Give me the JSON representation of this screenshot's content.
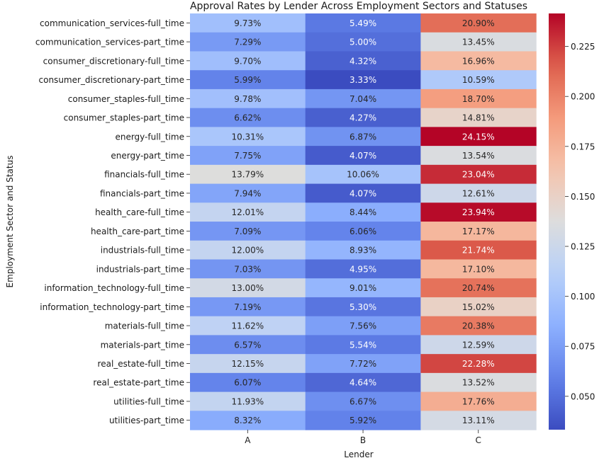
{
  "chart_data": {
    "type": "heatmap",
    "title": "Approval Rates by Lender Across Employment Sectors and Statuses",
    "xlabel": "Lender",
    "ylabel": "Employment Sector and Status",
    "colormap": "coolwarm",
    "vmin": 0.0333,
    "vmax": 0.2415,
    "colorbar_ticks": [
      "0.050",
      "0.075",
      "0.100",
      "0.125",
      "0.150",
      "0.175",
      "0.200",
      "0.225"
    ],
    "columns": [
      "A",
      "B",
      "C"
    ],
    "rows": [
      {
        "label": "communication_services-full_time",
        "values": [
          0.0973,
          0.0549,
          0.209
        ],
        "text": [
          "9.73%",
          "5.49%",
          "20.90%"
        ]
      },
      {
        "label": "communication_services-part_time",
        "values": [
          0.0729,
          0.05,
          0.1345
        ],
        "text": [
          "7.29%",
          "5.00%",
          "13.45%"
        ]
      },
      {
        "label": "consumer_discretionary-full_time",
        "values": [
          0.097,
          0.0432,
          0.1696
        ],
        "text": [
          "9.70%",
          "4.32%",
          "16.96%"
        ]
      },
      {
        "label": "consumer_discretionary-part_time",
        "values": [
          0.0599,
          0.0333,
          0.1059
        ],
        "text": [
          "5.99%",
          "3.33%",
          "10.59%"
        ]
      },
      {
        "label": "consumer_staples-full_time",
        "values": [
          0.0978,
          0.0704,
          0.187
        ],
        "text": [
          "9.78%",
          "7.04%",
          "18.70%"
        ]
      },
      {
        "label": "consumer_staples-part_time",
        "values": [
          0.0662,
          0.0427,
          0.1481
        ],
        "text": [
          "6.62%",
          "4.27%",
          "14.81%"
        ]
      },
      {
        "label": "energy-full_time",
        "values": [
          0.1031,
          0.0687,
          0.2415
        ],
        "text": [
          "10.31%",
          "6.87%",
          "24.15%"
        ]
      },
      {
        "label": "energy-part_time",
        "values": [
          0.0775,
          0.0407,
          0.1354
        ],
        "text": [
          "7.75%",
          "4.07%",
          "13.54%"
        ]
      },
      {
        "label": "financials-full_time",
        "values": [
          0.1379,
          0.1006,
          0.2304
        ],
        "text": [
          "13.79%",
          "10.06%",
          "23.04%"
        ]
      },
      {
        "label": "financials-part_time",
        "values": [
          0.0794,
          0.0407,
          0.1261
        ],
        "text": [
          "7.94%",
          "4.07%",
          "12.61%"
        ]
      },
      {
        "label": "health_care-full_time",
        "values": [
          0.1201,
          0.0844,
          0.2394
        ],
        "text": [
          "12.01%",
          "8.44%",
          "23.94%"
        ]
      },
      {
        "label": "health_care-part_time",
        "values": [
          0.0709,
          0.0606,
          0.1717
        ],
        "text": [
          "7.09%",
          "6.06%",
          "17.17%"
        ]
      },
      {
        "label": "industrials-full_time",
        "values": [
          0.12,
          0.0893,
          0.2174
        ],
        "text": [
          "12.00%",
          "8.93%",
          "21.74%"
        ]
      },
      {
        "label": "industrials-part_time",
        "values": [
          0.0703,
          0.0495,
          0.171
        ],
        "text": [
          "7.03%",
          "4.95%",
          "17.10%"
        ]
      },
      {
        "label": "information_technology-full_time",
        "values": [
          0.13,
          0.0901,
          0.2074
        ],
        "text": [
          "13.00%",
          "9.01%",
          "20.74%"
        ]
      },
      {
        "label": "information_technology-part_time",
        "values": [
          0.0719,
          0.053,
          0.1502
        ],
        "text": [
          "7.19%",
          "5.30%",
          "15.02%"
        ]
      },
      {
        "label": "materials-full_time",
        "values": [
          0.1162,
          0.0756,
          0.2038
        ],
        "text": [
          "11.62%",
          "7.56%",
          "20.38%"
        ]
      },
      {
        "label": "materials-part_time",
        "values": [
          0.0657,
          0.0554,
          0.1259
        ],
        "text": [
          "6.57%",
          "5.54%",
          "12.59%"
        ]
      },
      {
        "label": "real_estate-full_time",
        "values": [
          0.1215,
          0.0772,
          0.2228
        ],
        "text": [
          "12.15%",
          "7.72%",
          "22.28%"
        ]
      },
      {
        "label": "real_estate-part_time",
        "values": [
          0.0607,
          0.0464,
          0.1352
        ],
        "text": [
          "6.07%",
          "4.64%",
          "13.52%"
        ]
      },
      {
        "label": "utilities-full_time",
        "values": [
          0.1193,
          0.0667,
          0.1776
        ],
        "text": [
          "11.93%",
          "6.67%",
          "17.76%"
        ]
      },
      {
        "label": "utilities-part_time",
        "values": [
          0.0832,
          0.0592,
          0.1311
        ],
        "text": [
          "8.32%",
          "5.92%",
          "13.11%"
        ]
      }
    ]
  }
}
